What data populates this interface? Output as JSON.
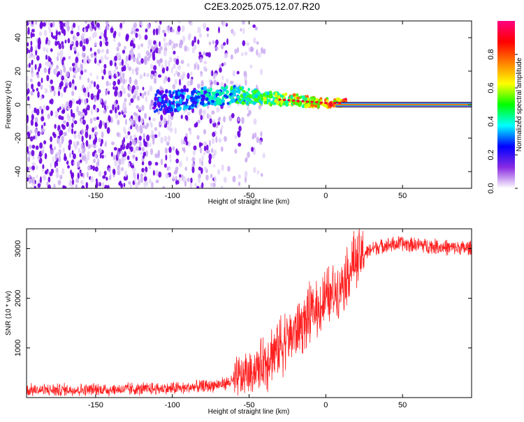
{
  "title": "C2E3.2025.075.12.07.R20",
  "chart_data": [
    {
      "type": "heatmap",
      "xlabel": "Height of straight line (km)",
      "ylabel": "Frequency (Hz)",
      "xlim": [
        -195,
        95
      ],
      "ylim": [
        -50,
        50
      ],
      "xticks": [
        -150,
        -100,
        -50,
        0,
        50
      ],
      "yticks": [
        -40,
        -20,
        0,
        20,
        40
      ],
      "colorbar": {
        "label": "Normalized spectral amplitude",
        "range": [
          0,
          1
        ],
        "ticks": [
          0.0,
          0.2,
          0.4,
          0.6,
          0.8
        ],
        "colormap": [
          "#ffffff",
          "#8a2be2",
          "#0000ff",
          "#00ffff",
          "#00ff00",
          "#ffff00",
          "#ff8000",
          "#ff0000",
          "#ff0080"
        ]
      },
      "features": {
        "noise_region_x": [
          -195,
          -50
        ],
        "tone_start_x": 10,
        "tone_frequency": 0,
        "noise_band_center_ramp": [
          [
            -110,
            1
          ],
          [
            -60,
            6
          ],
          [
            -30,
            3
          ],
          [
            0,
            1
          ]
        ]
      }
    },
    {
      "type": "line",
      "xlabel": "Height of straight line (km)",
      "ylabel": "SNR (10 * v/v)",
      "xlim": [
        -195,
        95
      ],
      "ylim": [
        0,
        3400
      ],
      "xticks": [
        -150,
        -100,
        -50,
        0,
        50
      ],
      "yticks": [
        1000,
        2000,
        3000
      ],
      "series": [
        {
          "color": "#ff2020",
          "x": [
            -195,
            -180,
            -160,
            -140,
            -120,
            -100,
            -90,
            -80,
            -70,
            -60,
            -55,
            -50,
            -45,
            -40,
            -35,
            -30,
            -25,
            -20,
            -15,
            -10,
            -5,
            0,
            5,
            10,
            15,
            20,
            25,
            30,
            35,
            40,
            50,
            60,
            70,
            80,
            95
          ],
          "y": [
            150,
            150,
            160,
            160,
            170,
            180,
            200,
            220,
            260,
            330,
            400,
            500,
            600,
            750,
            900,
            1050,
            1200,
            1350,
            1500,
            1650,
            1800,
            1950,
            2100,
            2300,
            2550,
            2750,
            2900,
            3000,
            3050,
            3080,
            3100,
            3080,
            3050,
            3020,
            3000
          ]
        }
      ]
    }
  ]
}
